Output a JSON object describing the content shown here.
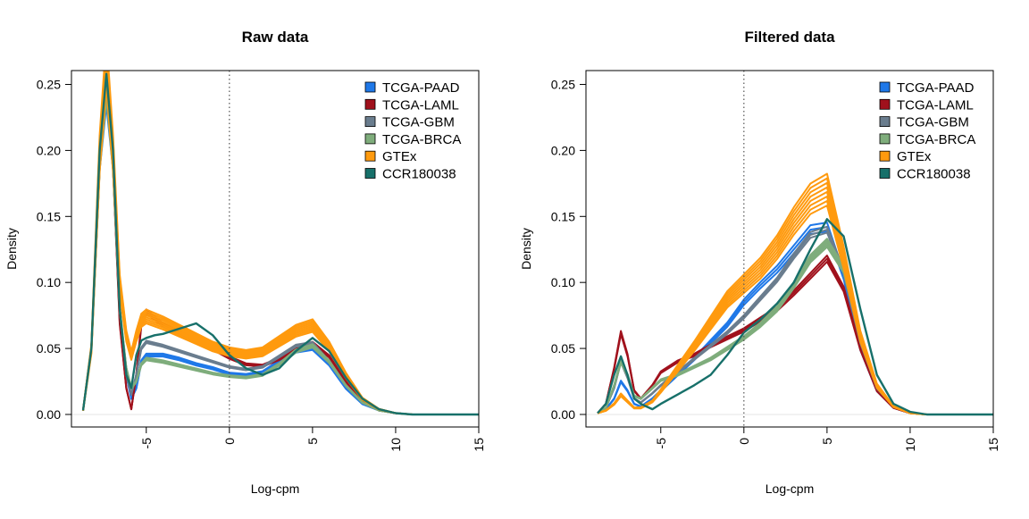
{
  "chart_data": [
    {
      "type": "line",
      "title": "Raw data",
      "xlabel": "Log-cpm",
      "ylabel": "Density",
      "xlim": [
        -9.5,
        15
      ],
      "ylim": [
        -0.0095,
        0.2605
      ],
      "x_ticks": [
        "-5",
        "0",
        "5",
        "10",
        "15"
      ],
      "y_ticks": [
        "0.00",
        "0.05",
        "0.10",
        "0.15",
        "0.20",
        "0.25"
      ],
      "reference_line_x": 0,
      "legend_position": "top-right",
      "grid": false,
      "series": [
        {
          "name": "TCGA-PAAD",
          "color": "#1f78e8",
          "x": [
            -8.8,
            -8.3,
            -7.8,
            -7.4,
            -7.0,
            -6.6,
            -6.2,
            -5.9,
            -5.6,
            -5.3,
            -5.0,
            -4.0,
            -3.0,
            -2.0,
            -1.0,
            0.0,
            1.0,
            2.0,
            3.0,
            4.0,
            5.0,
            6.0,
            7.0,
            8.0,
            9.0,
            10.0,
            11.0,
            12.0,
            13.0,
            14.0,
            15.0
          ],
          "y": [
            0.003,
            0.05,
            0.19,
            0.24,
            0.19,
            0.08,
            0.03,
            0.012,
            0.02,
            0.04,
            0.045,
            0.045,
            0.042,
            0.038,
            0.035,
            0.031,
            0.03,
            0.032,
            0.04,
            0.048,
            0.05,
            0.038,
            0.02,
            0.008,
            0.003,
            0.001,
            0.0,
            0.0,
            0.0,
            0.0,
            0.0
          ]
        },
        {
          "name": "TCGA-LAML",
          "color": "#a0111c",
          "x": [
            -8.8,
            -8.3,
            -7.8,
            -7.4,
            -7.0,
            -6.6,
            -6.2,
            -5.9,
            -5.6,
            -5.3,
            -5.0,
            -4.0,
            -3.0,
            -2.0,
            -1.0,
            0.0,
            1.0,
            2.0,
            3.0,
            4.0,
            5.0,
            6.0,
            7.0,
            8.0,
            9.0,
            10.0,
            11.0,
            12.0,
            13.0,
            14.0,
            15.0
          ],
          "y": [
            0.003,
            0.05,
            0.19,
            0.25,
            0.19,
            0.07,
            0.02,
            0.004,
            0.03,
            0.068,
            0.078,
            0.068,
            0.062,
            0.056,
            0.05,
            0.043,
            0.038,
            0.037,
            0.042,
            0.05,
            0.054,
            0.044,
            0.025,
            0.01,
            0.003,
            0.001,
            0.0,
            0.0,
            0.0,
            0.0,
            0.0
          ]
        },
        {
          "name": "TCGA-GBM",
          "color": "#6a7d8e",
          "x": [
            -8.8,
            -8.3,
            -7.8,
            -7.4,
            -7.0,
            -6.6,
            -6.2,
            -5.9,
            -5.6,
            -5.3,
            -5.0,
            -4.0,
            -3.0,
            -2.0,
            -1.0,
            0.0,
            1.0,
            2.0,
            3.0,
            4.0,
            5.0,
            6.0,
            7.0,
            8.0,
            9.0,
            10.0,
            11.0,
            12.0,
            13.0,
            14.0,
            15.0
          ],
          "y": [
            0.003,
            0.05,
            0.19,
            0.245,
            0.19,
            0.08,
            0.03,
            0.015,
            0.03,
            0.05,
            0.055,
            0.052,
            0.048,
            0.044,
            0.04,
            0.036,
            0.034,
            0.036,
            0.044,
            0.052,
            0.054,
            0.04,
            0.022,
            0.009,
            0.003,
            0.001,
            0.0,
            0.0,
            0.0,
            0.0,
            0.0
          ]
        },
        {
          "name": "TCGA-BRCA",
          "color": "#7fad7c",
          "x": [
            -8.8,
            -8.3,
            -7.8,
            -7.4,
            -7.0,
            -6.6,
            -6.2,
            -5.9,
            -5.6,
            -5.3,
            -5.0,
            -4.0,
            -3.0,
            -2.0,
            -1.0,
            0.0,
            1.0,
            2.0,
            3.0,
            4.0,
            5.0,
            6.0,
            7.0,
            8.0,
            9.0,
            10.0,
            11.0,
            12.0,
            13.0,
            14.0,
            15.0
          ],
          "y": [
            0.003,
            0.05,
            0.19,
            0.245,
            0.19,
            0.08,
            0.035,
            0.02,
            0.025,
            0.038,
            0.042,
            0.04,
            0.037,
            0.034,
            0.031,
            0.029,
            0.028,
            0.03,
            0.038,
            0.048,
            0.052,
            0.04,
            0.022,
            0.009,
            0.003,
            0.001,
            0.0,
            0.0,
            0.0,
            0.0,
            0.0
          ]
        },
        {
          "name": "GTEx",
          "color": "#ff9a0e",
          "x": [
            -8.8,
            -8.3,
            -7.8,
            -7.4,
            -7.0,
            -6.6,
            -6.2,
            -5.9,
            -5.6,
            -5.3,
            -5.0,
            -4.0,
            -3.0,
            -2.0,
            -1.0,
            0.0,
            1.0,
            2.0,
            3.0,
            4.0,
            5.0,
            6.0,
            7.0,
            8.0,
            9.0,
            10.0,
            11.0,
            12.0,
            13.0,
            14.0,
            15.0
          ],
          "y": [
            0.003,
            0.05,
            0.2,
            0.27,
            0.2,
            0.1,
            0.06,
            0.045,
            0.06,
            0.072,
            0.075,
            0.07,
            0.064,
            0.058,
            0.052,
            0.048,
            0.046,
            0.048,
            0.056,
            0.064,
            0.068,
            0.052,
            0.03,
            0.012,
            0.004,
            0.001,
            0.0,
            0.0,
            0.0,
            0.0,
            0.0
          ]
        },
        {
          "name": "CCR180038",
          "color": "#17706a",
          "x": [
            -8.8,
            -8.3,
            -7.8,
            -7.4,
            -7.0,
            -6.6,
            -6.2,
            -5.9,
            -5.6,
            -5.3,
            -5.0,
            -4.5,
            -4.0,
            -3.0,
            -2.0,
            -1.0,
            0.0,
            1.0,
            2.0,
            3.0,
            4.0,
            5.0,
            6.0,
            7.0,
            8.0,
            9.0,
            10.0,
            11.0,
            12.0,
            13.0,
            14.0,
            15.0
          ],
          "y": [
            0.003,
            0.05,
            0.2,
            0.258,
            0.2,
            0.08,
            0.03,
            0.02,
            0.045,
            0.056,
            0.058,
            0.06,
            0.061,
            0.065,
            0.069,
            0.06,
            0.045,
            0.035,
            0.03,
            0.035,
            0.048,
            0.058,
            0.048,
            0.028,
            0.012,
            0.004,
            0.001,
            0.0,
            0.0,
            0.0,
            0.0,
            0.0
          ]
        }
      ]
    },
    {
      "type": "line",
      "title": "Filtered data",
      "xlabel": "Log-cpm",
      "ylabel": "Density",
      "xlim": [
        -9.5,
        15
      ],
      "ylim": [
        -0.0095,
        0.2605
      ],
      "x_ticks": [
        "-5",
        "0",
        "5",
        "10",
        "15"
      ],
      "y_ticks": [
        "0.00",
        "0.05",
        "0.10",
        "0.15",
        "0.20",
        "0.25"
      ],
      "reference_line_x": 0,
      "legend_position": "top-right",
      "grid": false,
      "series": [
        {
          "name": "TCGA-PAAD",
          "color": "#1f78e8",
          "x": [
            -8.8,
            -8.3,
            -7.8,
            -7.4,
            -7.0,
            -6.6,
            -6.2,
            -5.5,
            -5.0,
            -4.0,
            -3.0,
            -2.0,
            -1.0,
            0.0,
            1.0,
            2.0,
            3.0,
            4.0,
            5.0,
            6.0,
            7.0,
            8.0,
            9.0,
            10.0,
            11.0,
            12.0,
            13.0,
            14.0,
            15.0
          ],
          "y": [
            0.001,
            0.004,
            0.012,
            0.025,
            0.018,
            0.008,
            0.006,
            0.012,
            0.018,
            0.03,
            0.042,
            0.055,
            0.068,
            0.085,
            0.098,
            0.11,
            0.125,
            0.14,
            0.142,
            0.105,
            0.05,
            0.018,
            0.005,
            0.001,
            0.0,
            0.0,
            0.0,
            0.0,
            0.0
          ]
        },
        {
          "name": "TCGA-LAML",
          "color": "#a0111c",
          "x": [
            -8.8,
            -8.3,
            -7.8,
            -7.4,
            -7.0,
            -6.6,
            -6.2,
            -5.5,
            -5.0,
            -4.0,
            -3.0,
            -2.0,
            -1.0,
            0.0,
            1.0,
            2.0,
            3.0,
            4.0,
            5.0,
            6.0,
            7.0,
            8.0,
            9.0,
            10.0,
            11.0,
            12.0,
            13.0,
            14.0,
            15.0
          ],
          "y": [
            0.001,
            0.008,
            0.035,
            0.062,
            0.045,
            0.018,
            0.012,
            0.022,
            0.032,
            0.04,
            0.045,
            0.052,
            0.058,
            0.064,
            0.072,
            0.08,
            0.092,
            0.105,
            0.118,
            0.095,
            0.05,
            0.018,
            0.005,
            0.001,
            0.0,
            0.0,
            0.0,
            0.0,
            0.0
          ]
        },
        {
          "name": "TCGA-GBM",
          "color": "#6a7d8e",
          "x": [
            -8.8,
            -8.3,
            -7.8,
            -7.4,
            -7.0,
            -6.6,
            -6.2,
            -5.5,
            -5.0,
            -4.0,
            -3.0,
            -2.0,
            -1.0,
            0.0,
            1.0,
            2.0,
            3.0,
            4.0,
            5.0,
            6.0,
            7.0,
            8.0,
            9.0,
            10.0,
            11.0,
            12.0,
            13.0,
            14.0,
            15.0
          ],
          "y": [
            0.001,
            0.005,
            0.02,
            0.04,
            0.028,
            0.012,
            0.009,
            0.016,
            0.022,
            0.032,
            0.042,
            0.052,
            0.062,
            0.074,
            0.088,
            0.102,
            0.12,
            0.136,
            0.14,
            0.108,
            0.055,
            0.02,
            0.006,
            0.001,
            0.0,
            0.0,
            0.0,
            0.0,
            0.0
          ]
        },
        {
          "name": "TCGA-BRCA",
          "color": "#7fad7c",
          "x": [
            -8.8,
            -8.3,
            -7.8,
            -7.4,
            -7.0,
            -6.6,
            -6.2,
            -5.5,
            -5.0,
            -4.0,
            -3.0,
            -2.0,
            -1.0,
            0.0,
            1.0,
            2.0,
            3.0,
            4.0,
            5.0,
            6.0,
            7.0,
            8.0,
            9.0,
            10.0,
            11.0,
            12.0,
            13.0,
            14.0,
            15.0
          ],
          "y": [
            0.001,
            0.005,
            0.022,
            0.04,
            0.03,
            0.014,
            0.012,
            0.02,
            0.026,
            0.03,
            0.036,
            0.042,
            0.05,
            0.058,
            0.068,
            0.08,
            0.098,
            0.118,
            0.13,
            0.11,
            0.06,
            0.022,
            0.006,
            0.001,
            0.0,
            0.0,
            0.0,
            0.0,
            0.0
          ]
        },
        {
          "name": "GTEx",
          "color": "#ff9a0e",
          "x": [
            -8.8,
            -8.3,
            -7.8,
            -7.4,
            -7.0,
            -6.6,
            -6.2,
            -5.5,
            -5.0,
            -4.0,
            -3.0,
            -2.0,
            -1.0,
            0.0,
            1.0,
            2.0,
            3.0,
            4.0,
            5.0,
            6.0,
            7.0,
            8.0,
            9.0,
            10.0,
            11.0,
            12.0,
            13.0,
            14.0,
            15.0
          ],
          "y": [
            0.001,
            0.003,
            0.008,
            0.015,
            0.01,
            0.005,
            0.005,
            0.01,
            0.018,
            0.035,
            0.052,
            0.07,
            0.088,
            0.1,
            0.112,
            0.128,
            0.148,
            0.165,
            0.172,
            0.12,
            0.06,
            0.022,
            0.006,
            0.001,
            0.0,
            0.0,
            0.0,
            0.0,
            0.0
          ]
        },
        {
          "name": "CCR180038",
          "color": "#17706a",
          "x": [
            -8.8,
            -8.3,
            -7.8,
            -7.4,
            -7.0,
            -6.6,
            -6.2,
            -5.5,
            -5.0,
            -4.0,
            -3.0,
            -2.0,
            -1.0,
            0.0,
            1.0,
            2.0,
            3.0,
            4.0,
            5.0,
            6.0,
            7.0,
            8.0,
            9.0,
            10.0,
            11.0,
            12.0,
            13.0,
            14.0,
            15.0
          ],
          "y": [
            0.001,
            0.008,
            0.03,
            0.044,
            0.03,
            0.012,
            0.008,
            0.004,
            0.008,
            0.015,
            0.022,
            0.03,
            0.045,
            0.062,
            0.072,
            0.084,
            0.1,
            0.125,
            0.148,
            0.135,
            0.08,
            0.03,
            0.008,
            0.002,
            0.0,
            0.0,
            0.0,
            0.0,
            0.0
          ]
        }
      ]
    }
  ]
}
